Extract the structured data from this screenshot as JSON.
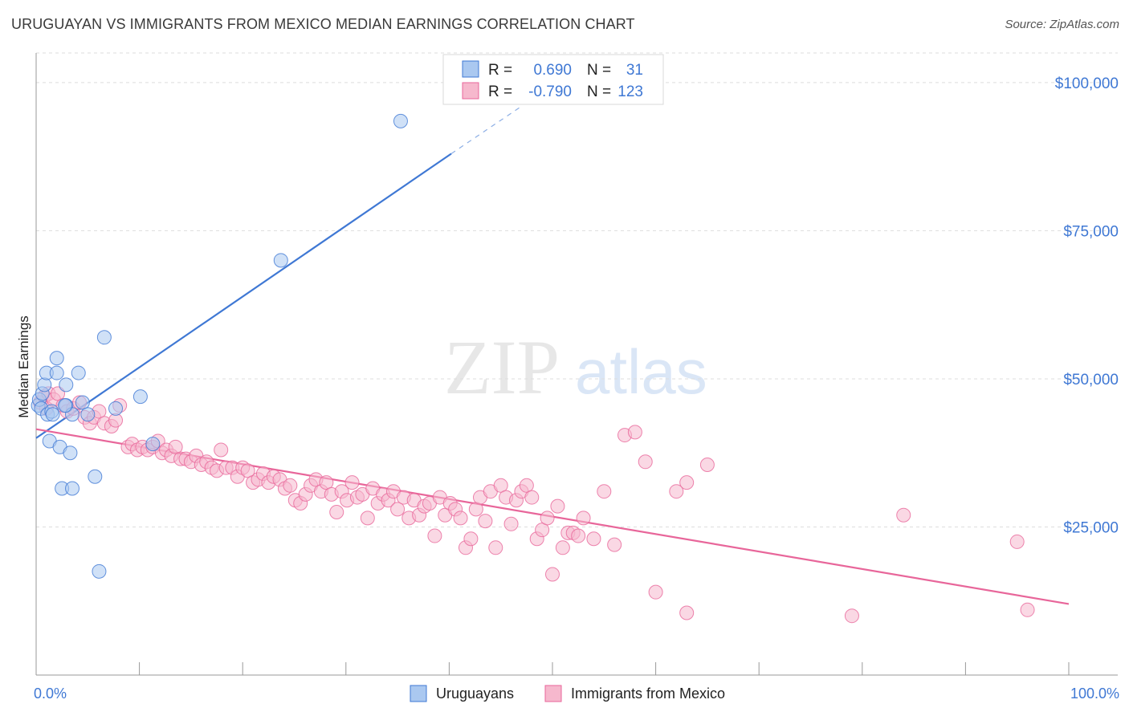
{
  "title": "URUGUAYAN VS IMMIGRANTS FROM MEXICO MEDIAN EARNINGS CORRELATION CHART",
  "source": "Source: ZipAtlas.com",
  "watermark": {
    "zip": "ZIP",
    "atlas": "atlas"
  },
  "colors": {
    "blue": "#3f78d4",
    "blue_fill": "#aac8f0",
    "pink": "#e8669a",
    "pink_fill": "#f6b8cd",
    "grid": "#dddddd",
    "label_blue": "#3f78d4"
  },
  "legend": {
    "r_label": "R =",
    "n_label": "N =",
    "rows": [
      {
        "r": "0.690",
        "n": "31"
      },
      {
        "r": "-0.790",
        "n": "123"
      }
    ]
  },
  "bottom_legend": [
    "Uruguayans",
    "Immigrants from Mexico"
  ],
  "chart_data": {
    "type": "scatter",
    "xlabel": "",
    "ylabel": "Median Earnings",
    "xlim": [
      0,
      100
    ],
    "ylim": [
      0,
      105000
    ],
    "x_tick_labels": [
      "0.0%",
      "100.0%"
    ],
    "y_ticks": [
      25000,
      50000,
      75000,
      100000
    ],
    "y_tick_labels": [
      "$25,000",
      "$50,000",
      "$75,000",
      "$100,000"
    ],
    "grid": true,
    "series": [
      {
        "name": "Uruguayans",
        "color": "blue",
        "points": [
          [
            0.2,
            45500
          ],
          [
            0.3,
            46500
          ],
          [
            0.5,
            45000
          ],
          [
            0.6,
            47500
          ],
          [
            0.8,
            49000
          ],
          [
            1.0,
            51000
          ],
          [
            1.1,
            44000
          ],
          [
            1.3,
            39500
          ],
          [
            1.5,
            44500
          ],
          [
            1.6,
            44000
          ],
          [
            2.0,
            53500
          ],
          [
            2.0,
            51000
          ],
          [
            2.3,
            38500
          ],
          [
            2.5,
            31500
          ],
          [
            2.9,
            49000
          ],
          [
            2.9,
            45500
          ],
          [
            3.3,
            37500
          ],
          [
            3.5,
            31500
          ],
          [
            3.5,
            44000
          ],
          [
            4.1,
            51000
          ],
          [
            4.5,
            46000
          ],
          [
            5.0,
            44000
          ],
          [
            5.7,
            33500
          ],
          [
            6.1,
            17500
          ],
          [
            6.6,
            57000
          ],
          [
            7.7,
            45000
          ],
          [
            10.1,
            47000
          ],
          [
            11.3,
            39000
          ],
          [
            23.7,
            70000
          ],
          [
            35.3,
            93500
          ],
          [
            2.8,
            45500
          ]
        ],
        "trend": {
          "x": [
            0,
            40.2
          ],
          "y": [
            40000,
            88000
          ]
        },
        "trend_dashed": {
          "x": [
            40.2,
            47
          ],
          "y": [
            88000,
            96000
          ]
        }
      },
      {
        "name": "Immigrants from Mexico",
        "color": "pink",
        "points": [
          [
            0.4,
            46000
          ],
          [
            0.8,
            47000
          ],
          [
            1.0,
            45000
          ],
          [
            1.2,
            47500
          ],
          [
            1.7,
            46500
          ],
          [
            2.1,
            47500
          ],
          [
            2.6,
            45500
          ],
          [
            3.0,
            44500
          ],
          [
            3.6,
            45000
          ],
          [
            4.2,
            46000
          ],
          [
            4.7,
            43500
          ],
          [
            5.2,
            42500
          ],
          [
            5.6,
            43500
          ],
          [
            6.1,
            44500
          ],
          [
            6.6,
            42500
          ],
          [
            7.3,
            42000
          ],
          [
            7.7,
            43000
          ],
          [
            8.1,
            45500
          ],
          [
            8.9,
            38500
          ],
          [
            9.3,
            39000
          ],
          [
            9.8,
            38000
          ],
          [
            10.3,
            38500
          ],
          [
            10.8,
            38000
          ],
          [
            11.3,
            38500
          ],
          [
            11.8,
            39500
          ],
          [
            12.2,
            37500
          ],
          [
            12.6,
            38000
          ],
          [
            13.1,
            37000
          ],
          [
            13.5,
            38500
          ],
          [
            14.0,
            36500
          ],
          [
            14.5,
            36500
          ],
          [
            15.0,
            36000
          ],
          [
            15.5,
            37000
          ],
          [
            16.0,
            35500
          ],
          [
            16.5,
            36000
          ],
          [
            17.0,
            35000
          ],
          [
            17.5,
            34500
          ],
          [
            17.9,
            38000
          ],
          [
            18.4,
            35000
          ],
          [
            19.0,
            35000
          ],
          [
            19.5,
            33500
          ],
          [
            20.0,
            35000
          ],
          [
            20.5,
            34500
          ],
          [
            21.0,
            32500
          ],
          [
            21.5,
            33000
          ],
          [
            22.0,
            34000
          ],
          [
            22.5,
            32500
          ],
          [
            23.0,
            33500
          ],
          [
            23.6,
            33000
          ],
          [
            24.1,
            31500
          ],
          [
            24.6,
            32000
          ],
          [
            25.1,
            29500
          ],
          [
            25.6,
            29000
          ],
          [
            26.1,
            30500
          ],
          [
            26.6,
            32000
          ],
          [
            27.1,
            33000
          ],
          [
            27.6,
            31000
          ],
          [
            28.1,
            32500
          ],
          [
            28.6,
            30500
          ],
          [
            29.1,
            27500
          ],
          [
            29.6,
            31000
          ],
          [
            30.1,
            29500
          ],
          [
            30.6,
            32500
          ],
          [
            31.1,
            30000
          ],
          [
            31.6,
            30500
          ],
          [
            32.1,
            26500
          ],
          [
            32.6,
            31500
          ],
          [
            33.1,
            29000
          ],
          [
            33.6,
            30500
          ],
          [
            34.1,
            29500
          ],
          [
            34.6,
            31000
          ],
          [
            35.0,
            28000
          ],
          [
            35.6,
            30000
          ],
          [
            36.1,
            26500
          ],
          [
            36.6,
            29500
          ],
          [
            37.1,
            27000
          ],
          [
            37.6,
            28500
          ],
          [
            38.1,
            29000
          ],
          [
            38.6,
            23500
          ],
          [
            39.1,
            30000
          ],
          [
            39.6,
            27000
          ],
          [
            40.1,
            29000
          ],
          [
            40.6,
            28000
          ],
          [
            41.1,
            26500
          ],
          [
            41.6,
            21500
          ],
          [
            42.1,
            23000
          ],
          [
            42.6,
            28000
          ],
          [
            43.0,
            30000
          ],
          [
            43.5,
            26000
          ],
          [
            44.0,
            31000
          ],
          [
            44.5,
            21500
          ],
          [
            45.0,
            32000
          ],
          [
            45.5,
            30000
          ],
          [
            46.0,
            25500
          ],
          [
            46.5,
            29500
          ],
          [
            47.0,
            31000
          ],
          [
            47.5,
            32000
          ],
          [
            48.0,
            30000
          ],
          [
            48.5,
            23000
          ],
          [
            49.0,
            24500
          ],
          [
            49.5,
            26500
          ],
          [
            50.0,
            17000
          ],
          [
            50.5,
            28500
          ],
          [
            51.0,
            21500
          ],
          [
            51.5,
            24000
          ],
          [
            52.0,
            24000
          ],
          [
            52.5,
            23500
          ],
          [
            53.0,
            26500
          ],
          [
            54.0,
            23000
          ],
          [
            55.0,
            31000
          ],
          [
            56.0,
            22000
          ],
          [
            57.0,
            40500
          ],
          [
            58.0,
            41000
          ],
          [
            59.0,
            36000
          ],
          [
            60.0,
            14000
          ],
          [
            62.0,
            31000
          ],
          [
            63.0,
            32500
          ],
          [
            63.0,
            10500
          ],
          [
            65.0,
            35500
          ],
          [
            79.0,
            10000
          ],
          [
            84.0,
            27000
          ],
          [
            95.0,
            22500
          ],
          [
            96.0,
            11000
          ]
        ],
        "trend": {
          "x": [
            0,
            100
          ],
          "y": [
            41500,
            12000
          ]
        }
      }
    ]
  }
}
